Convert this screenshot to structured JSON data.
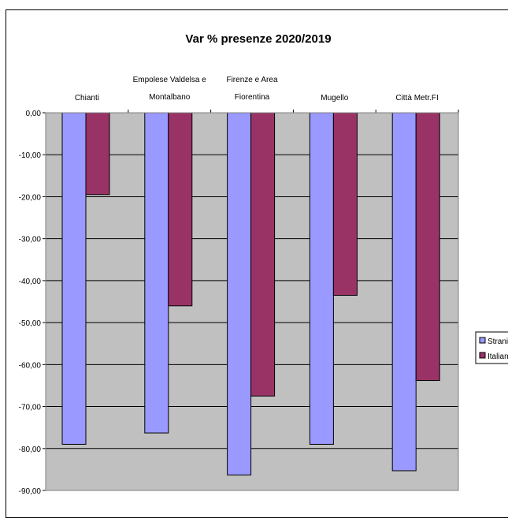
{
  "chart_data": {
    "type": "bar",
    "title": "Var % presenze 2020/2019",
    "categories": [
      [
        "Chianti"
      ],
      [
        "Empolese Valdelsa e",
        "Montalbano"
      ],
      [
        "Firenze e Area",
        "Fiorentina"
      ],
      [
        "Mugello"
      ],
      [
        "Città Metr.FI"
      ]
    ],
    "series": [
      {
        "name": "Stranieri",
        "color": "#9999FF",
        "values": [
          -79.0,
          -76.3,
          -86.3,
          -79.0,
          -85.3
        ]
      },
      {
        "name": "Italiani",
        "color": "#993366",
        "values": [
          -19.5,
          -46.0,
          -67.5,
          -43.5,
          -63.8
        ]
      }
    ],
    "ylim": [
      -90,
      0
    ],
    "yticks": [
      "0,00",
      "-10,00",
      "-20,00",
      "-30,00",
      "-40,00",
      "-50,00",
      "-60,00",
      "-70,00",
      "-80,00",
      "-90,00"
    ],
    "plot_background": "#C0C0C0",
    "grid": true,
    "legend_position": "right",
    "x_axis_position": "top"
  }
}
